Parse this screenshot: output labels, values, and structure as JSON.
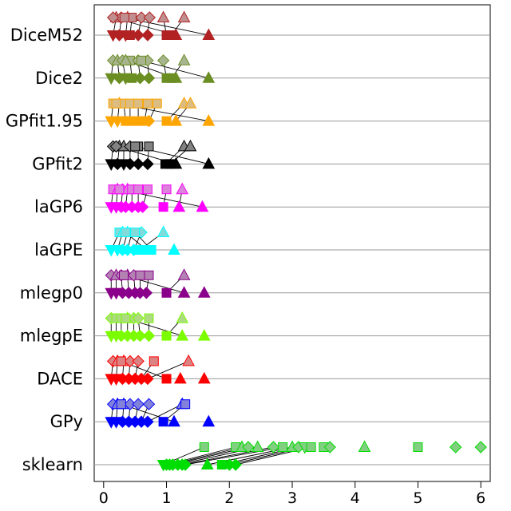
{
  "chart_data": {
    "type": "scatter",
    "title": "",
    "xlabel": "",
    "ylabel": "",
    "xlim": [
      -0.15,
      6.15
    ],
    "xticks": [
      0,
      1,
      2,
      3,
      4,
      5,
      6
    ],
    "xtick_labels": [
      "0",
      "1",
      "2",
      "3",
      "4",
      "5",
      "6"
    ],
    "grid": "horizontal lines at each category",
    "legend": "none",
    "categories": [
      "DiceM52",
      "Dice2",
      "GPfit1.95",
      "GPfit2",
      "laGP6",
      "laGPE",
      "mlegp0",
      "mlegpE",
      "DACE",
      "GPy",
      "sklearn"
    ],
    "series": [
      {
        "name": "DiceM52",
        "color": "#B22222",
        "before": [
          [
            0.2,
            "triangle"
          ],
          [
            0.28,
            "diamond"
          ],
          [
            0.38,
            "triangle"
          ],
          [
            0.45,
            "square"
          ],
          [
            0.6,
            "diamond"
          ],
          [
            0.73,
            "diamond"
          ],
          [
            0.95,
            "triangle"
          ],
          [
            1.28,
            "triangle"
          ],
          [
            0.15,
            "diamond"
          ],
          [
            0.33,
            "square"
          ]
        ],
        "after": [
          [
            0.15,
            "tridown"
          ],
          [
            0.25,
            "diamond"
          ],
          [
            0.35,
            "tridown"
          ],
          [
            0.42,
            "square"
          ],
          [
            0.55,
            "diamond"
          ],
          [
            0.7,
            "diamond"
          ],
          [
            1.0,
            "square"
          ],
          [
            1.08,
            "square"
          ],
          [
            1.15,
            "triangle"
          ],
          [
            1.67,
            "triangle"
          ]
        ]
      },
      {
        "name": "Dice2",
        "color": "#6B8E23",
        "before": [
          [
            0.15,
            "diamond"
          ],
          [
            0.22,
            "triangle"
          ],
          [
            0.3,
            "diamond"
          ],
          [
            0.42,
            "square"
          ],
          [
            0.55,
            "diamond"
          ],
          [
            0.7,
            "diamond"
          ],
          [
            0.95,
            "diamond"
          ],
          [
            1.28,
            "triangle"
          ],
          [
            0.35,
            "triangle"
          ],
          [
            0.6,
            "square"
          ]
        ],
        "after": [
          [
            0.12,
            "tridown"
          ],
          [
            0.25,
            "diamond"
          ],
          [
            0.35,
            "tridown"
          ],
          [
            0.45,
            "square"
          ],
          [
            0.58,
            "diamond"
          ],
          [
            0.72,
            "diamond"
          ],
          [
            1.0,
            "square"
          ],
          [
            1.08,
            "square"
          ],
          [
            1.15,
            "triangle"
          ],
          [
            1.67,
            "triangle"
          ]
        ]
      },
      {
        "name": "GPfit1.95",
        "color": "#FFA500",
        "before": [
          [
            0.15,
            "square"
          ],
          [
            0.25,
            "triangle"
          ],
          [
            0.32,
            "square"
          ],
          [
            0.42,
            "square"
          ],
          [
            0.55,
            "square"
          ],
          [
            0.7,
            "square"
          ],
          [
            0.85,
            "square"
          ],
          [
            1.28,
            "triangle"
          ],
          [
            1.38,
            "triangle"
          ],
          [
            0.2,
            "square"
          ]
        ],
        "after": [
          [
            0.12,
            "tridown"
          ],
          [
            0.22,
            "tridown"
          ],
          [
            0.35,
            "square"
          ],
          [
            0.42,
            "square"
          ],
          [
            0.55,
            "square"
          ],
          [
            0.65,
            "square"
          ],
          [
            0.72,
            "diamond"
          ],
          [
            1.0,
            "square"
          ],
          [
            1.15,
            "triangle"
          ],
          [
            1.67,
            "triangle"
          ]
        ]
      },
      {
        "name": "GPfit2",
        "color": "#000000",
        "before": [
          [
            0.15,
            "diamond"
          ],
          [
            0.25,
            "triangle"
          ],
          [
            0.32,
            "triangle"
          ],
          [
            0.42,
            "diamond"
          ],
          [
            0.55,
            "square"
          ],
          [
            0.72,
            "square"
          ],
          [
            1.28,
            "triangle"
          ],
          [
            1.38,
            "triangle"
          ],
          [
            0.2,
            "diamond"
          ],
          [
            0.5,
            "square"
          ]
        ],
        "after": [
          [
            0.12,
            "tridown"
          ],
          [
            0.22,
            "diamond"
          ],
          [
            0.32,
            "tridown"
          ],
          [
            0.42,
            "diamond"
          ],
          [
            0.55,
            "diamond"
          ],
          [
            0.7,
            "diamond"
          ],
          [
            0.98,
            "square"
          ],
          [
            1.06,
            "square"
          ],
          [
            1.15,
            "triangle"
          ],
          [
            1.67,
            "triangle"
          ]
        ]
      },
      {
        "name": "laGP6",
        "color": "#FF00FF",
        "before": [
          [
            0.15,
            "square"
          ],
          [
            0.22,
            "triangle"
          ],
          [
            0.3,
            "diamond"
          ],
          [
            0.38,
            "triangle"
          ],
          [
            0.45,
            "square"
          ],
          [
            0.55,
            "square"
          ],
          [
            0.7,
            "square"
          ],
          [
            1.0,
            "square"
          ],
          [
            1.25,
            "triangle"
          ],
          [
            0.25,
            "square"
          ]
        ],
        "after": [
          [
            0.12,
            "tridown"
          ],
          [
            0.2,
            "tridown"
          ],
          [
            0.28,
            "diamond"
          ],
          [
            0.35,
            "diamond"
          ],
          [
            0.45,
            "diamond"
          ],
          [
            0.55,
            "diamond"
          ],
          [
            0.62,
            "diamond"
          ],
          [
            0.95,
            "square"
          ],
          [
            1.2,
            "triangle"
          ],
          [
            1.57,
            "triangle"
          ]
        ]
      },
      {
        "name": "laGPE",
        "color": "#00FFFF",
        "before": [
          [
            0.25,
            "square"
          ],
          [
            0.3,
            "triangle"
          ],
          [
            0.38,
            "triangle"
          ],
          [
            0.45,
            "square"
          ],
          [
            0.6,
            "diamond"
          ],
          [
            0.95,
            "triangle"
          ],
          [
            0.35,
            "square"
          ],
          [
            0.5,
            "square"
          ]
        ],
        "after": [
          [
            0.12,
            "tridown"
          ],
          [
            0.22,
            "tridown"
          ],
          [
            0.3,
            "diamond"
          ],
          [
            0.38,
            "diamond"
          ],
          [
            0.48,
            "diamond"
          ],
          [
            0.58,
            "square"
          ],
          [
            0.68,
            "square"
          ],
          [
            0.76,
            "square"
          ],
          [
            1.12,
            "triangle"
          ]
        ]
      },
      {
        "name": "mlegp0",
        "color": "#8B008B",
        "before": [
          [
            0.12,
            "diamond"
          ],
          [
            0.2,
            "triangle"
          ],
          [
            0.28,
            "diamond"
          ],
          [
            0.38,
            "triangle"
          ],
          [
            0.48,
            "diamond"
          ],
          [
            0.58,
            "square"
          ],
          [
            0.72,
            "square"
          ],
          [
            1.28,
            "triangle"
          ],
          [
            0.32,
            "square"
          ]
        ],
        "after": [
          [
            0.12,
            "tridown"
          ],
          [
            0.2,
            "tridown"
          ],
          [
            0.3,
            "diamond"
          ],
          [
            0.4,
            "diamond"
          ],
          [
            0.5,
            "diamond"
          ],
          [
            0.58,
            "diamond"
          ],
          [
            0.68,
            "diamond"
          ],
          [
            1.0,
            "square"
          ],
          [
            1.28,
            "triangle"
          ],
          [
            1.6,
            "triangle"
          ]
        ]
      },
      {
        "name": "mlegpE",
        "color": "#7CFC00",
        "before": [
          [
            0.12,
            "diamond"
          ],
          [
            0.2,
            "square"
          ],
          [
            0.28,
            "square"
          ],
          [
            0.38,
            "triangle"
          ],
          [
            0.48,
            "diamond"
          ],
          [
            0.55,
            "diamond"
          ],
          [
            0.72,
            "square"
          ],
          [
            1.25,
            "triangle"
          ],
          [
            0.35,
            "square"
          ]
        ],
        "after": [
          [
            0.12,
            "tridown"
          ],
          [
            0.2,
            "tridown"
          ],
          [
            0.28,
            "diamond"
          ],
          [
            0.38,
            "diamond"
          ],
          [
            0.48,
            "diamond"
          ],
          [
            0.58,
            "diamond"
          ],
          [
            0.72,
            "diamond"
          ],
          [
            1.0,
            "square"
          ],
          [
            1.25,
            "triangle"
          ],
          [
            1.6,
            "triangle"
          ]
        ]
      },
      {
        "name": "DACE",
        "color": "#FF0000",
        "before": [
          [
            0.15,
            "diamond"
          ],
          [
            0.22,
            "triangle"
          ],
          [
            0.32,
            "triangle"
          ],
          [
            0.42,
            "diamond"
          ],
          [
            0.55,
            "diamond"
          ],
          [
            0.8,
            "square"
          ],
          [
            1.35,
            "triangle"
          ],
          [
            0.28,
            "square"
          ]
        ],
        "after": [
          [
            0.12,
            "tridown"
          ],
          [
            0.2,
            "tridown"
          ],
          [
            0.3,
            "diamond"
          ],
          [
            0.4,
            "diamond"
          ],
          [
            0.5,
            "diamond"
          ],
          [
            0.6,
            "diamond"
          ],
          [
            0.7,
            "diamond"
          ],
          [
            1.0,
            "square"
          ],
          [
            1.22,
            "triangle"
          ],
          [
            1.6,
            "triangle"
          ]
        ]
      },
      {
        "name": "GPy",
        "color": "#0000FF",
        "before": [
          [
            0.15,
            "diamond"
          ],
          [
            0.22,
            "triangle"
          ],
          [
            0.32,
            "triangle"
          ],
          [
            0.42,
            "diamond"
          ],
          [
            0.55,
            "diamond"
          ],
          [
            0.72,
            "diamond"
          ],
          [
            1.25,
            "triangle"
          ],
          [
            1.3,
            "square"
          ],
          [
            0.28,
            "square"
          ]
        ],
        "after": [
          [
            0.12,
            "tridown"
          ],
          [
            0.2,
            "tridown"
          ],
          [
            0.3,
            "diamond"
          ],
          [
            0.4,
            "diamond"
          ],
          [
            0.5,
            "diamond"
          ],
          [
            0.6,
            "diamond"
          ],
          [
            0.7,
            "diamond"
          ],
          [
            0.95,
            "square"
          ],
          [
            1.12,
            "triangle"
          ],
          [
            1.67,
            "triangle"
          ]
        ]
      },
      {
        "name": "sklearn",
        "color": "#00DD00",
        "before": [
          [
            1.6,
            "square"
          ],
          [
            2.1,
            "square"
          ],
          [
            2.2,
            "triangle"
          ],
          [
            2.3,
            "diamond"
          ],
          [
            2.45,
            "triangle"
          ],
          [
            2.7,
            "diamond"
          ],
          [
            2.85,
            "square"
          ],
          [
            3.0,
            "triangle"
          ],
          [
            3.1,
            "diamond"
          ],
          [
            3.2,
            "tridown"
          ],
          [
            3.3,
            "square"
          ],
          [
            3.5,
            "square"
          ],
          [
            3.6,
            "diamond"
          ],
          [
            4.15,
            "triangle"
          ],
          [
            5.0,
            "square"
          ],
          [
            5.6,
            "diamond"
          ],
          [
            6.0,
            "diamond"
          ]
        ],
        "after": [
          [
            0.95,
            "tridown"
          ],
          [
            1.0,
            "diamond"
          ],
          [
            1.05,
            "diamond"
          ],
          [
            1.1,
            "diamond"
          ],
          [
            1.18,
            "diamond"
          ],
          [
            1.25,
            "diamond"
          ],
          [
            1.3,
            "diamond"
          ],
          [
            1.65,
            "triangle"
          ],
          [
            1.88,
            "square"
          ],
          [
            2.0,
            "diamond"
          ],
          [
            2.1,
            "diamond"
          ]
        ]
      }
    ]
  }
}
